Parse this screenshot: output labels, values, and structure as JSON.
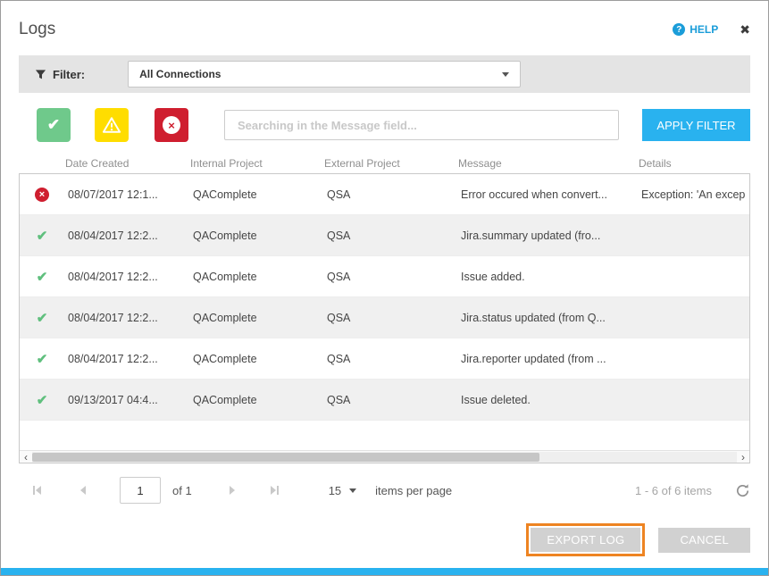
{
  "dialog": {
    "title": "Logs",
    "help_label": "HELP",
    "help_icon_glyph": "?",
    "close_icon_glyph": "✖"
  },
  "filter_bar": {
    "label": "Filter:",
    "dropdown_value": "All Connections"
  },
  "toolbar": {
    "search_placeholder": "Searching in the Message field...",
    "apply_filter_label": "APPLY FILTER"
  },
  "table": {
    "columns": [
      "Date Created",
      "Internal Project",
      "External Project",
      "Message",
      "Details"
    ],
    "rows": [
      {
        "status": "error",
        "date": "08/07/2017 12:1...",
        "internal": "QAComplete",
        "external": "QSA",
        "message": "Error occured when convert...",
        "details": "Exception: 'An excep"
      },
      {
        "status": "success",
        "date": "08/04/2017 12:2...",
        "internal": "QAComplete",
        "external": "QSA",
        "message": "Jira.summary updated (fro...",
        "details": ""
      },
      {
        "status": "success",
        "date": "08/04/2017 12:2...",
        "internal": "QAComplete",
        "external": "QSA",
        "message": "Issue added.",
        "details": ""
      },
      {
        "status": "success",
        "date": "08/04/2017 12:2...",
        "internal": "QAComplete",
        "external": "QSA",
        "message": "Jira.status updated (from Q...",
        "details": ""
      },
      {
        "status": "success",
        "date": "08/04/2017 12:2...",
        "internal": "QAComplete",
        "external": "QSA",
        "message": "Jira.reporter updated (from ...",
        "details": ""
      },
      {
        "status": "success",
        "date": "09/13/2017 04:4...",
        "internal": "QAComplete",
        "external": "QSA",
        "message": "Issue deleted.",
        "details": ""
      }
    ]
  },
  "scrollbar": {
    "left_arrow": "‹",
    "right_arrow": "›"
  },
  "pager": {
    "page_value": "1",
    "of_label": "of 1",
    "page_size": "15",
    "items_per_page_label": "items per page",
    "range_label": "1 - 6 of 6 items"
  },
  "footer": {
    "export_label": "EXPORT LOG",
    "cancel_label": "CANCEL"
  },
  "colors": {
    "accent_blue": "#29b2ef",
    "help_blue": "#1b9dd9",
    "success_green": "#6fc98b",
    "warning_yellow": "#ffdd00",
    "error_red": "#cf1e2f",
    "highlight_orange": "#ee8422",
    "filter_bar_gray": "#e4e4e4",
    "alt_row_gray": "#f0f0f0"
  }
}
